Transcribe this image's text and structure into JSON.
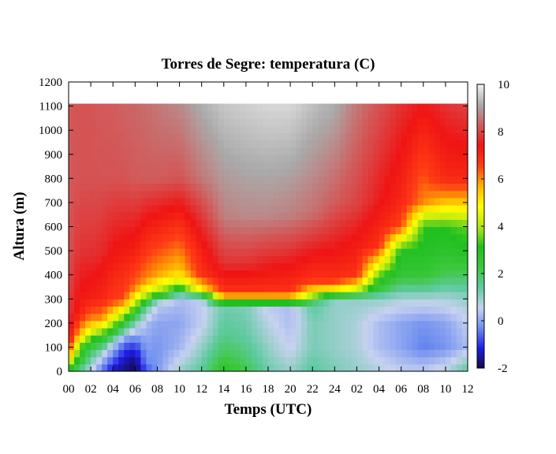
{
  "chart_data": {
    "type": "heatmap",
    "title": "Torres de Segre: temperatura (C)",
    "xlabel": "Temps (UTC)",
    "ylabel": "Altura (m)",
    "x_tick_labels": [
      "00",
      "02",
      "04",
      "06",
      "08",
      "10",
      "12",
      "14",
      "16",
      "18",
      "20",
      "22",
      "24",
      "02",
      "04",
      "06",
      "08",
      "10",
      "12"
    ],
    "x_range_hours": [
      0,
      36
    ],
    "y_ticks": [
      0,
      100,
      200,
      300,
      400,
      500,
      600,
      700,
      800,
      900,
      1000,
      1100,
      1200
    ],
    "ylim": [
      0,
      1200
    ],
    "data_top_altitude": 1110,
    "colorbar": {
      "ticks": [
        -2,
        0,
        2,
        4,
        6,
        8,
        10
      ],
      "range": [
        -2,
        10
      ],
      "palette": [
        "#140a46",
        "#1e1ee6",
        "#6e8ef0",
        "#c8d2f0",
        "#5fcaa0",
        "#3cc83c",
        "#20c020",
        "#b4e614",
        "#ffff00",
        "#ffb400",
        "#ff3c14",
        "#f01414",
        "#d25a5a",
        "#aaaaaa",
        "#f0f0f0"
      ]
    },
    "profiles": [
      {
        "t": 0,
        "z": [
          0,
          40,
          70,
          100,
          130,
          250,
          500,
          800,
          1110
        ],
        "v": [
          2.5,
          4.5,
          6,
          6.8,
          7.4,
          7.9,
          8.2,
          8.3,
          8.3
        ]
      },
      {
        "t": 1,
        "z": [
          0,
          40,
          100,
          130,
          170,
          250,
          500,
          800,
          1110
        ],
        "v": [
          1.5,
          2.5,
          3.5,
          4.8,
          6,
          7.2,
          7.8,
          8.2,
          8.2
        ]
      },
      {
        "t": 2,
        "z": [
          0,
          60,
          110,
          140,
          180,
          220,
          300,
          500,
          800,
          1110
        ],
        "v": [
          0.6,
          1.5,
          2.5,
          3.5,
          5,
          6,
          7.2,
          7.8,
          8.2,
          8.2
        ]
      },
      {
        "t": 3,
        "z": [
          0,
          60,
          110,
          150,
          180,
          220,
          300,
          500,
          800,
          1110
        ],
        "v": [
          -0.5,
          0.5,
          2,
          3,
          4.5,
          6,
          7,
          7.7,
          8.2,
          8.3
        ]
      },
      {
        "t": 4,
        "z": [
          0,
          40,
          100,
          150,
          190,
          230,
          300,
          500,
          800,
          1110
        ],
        "v": [
          -1.4,
          -0.8,
          0.2,
          2.2,
          3.6,
          5,
          6.7,
          7.4,
          8.2,
          8.3
        ]
      },
      {
        "t": 5,
        "z": [
          0,
          60,
          130,
          170,
          200,
          240,
          300,
          500,
          800,
          1110
        ],
        "v": [
          -1.7,
          -1.3,
          -0.3,
          1.5,
          2.5,
          4.2,
          6.5,
          7.3,
          8.2,
          8.4
        ]
      },
      {
        "t": 6,
        "z": [
          0,
          60,
          130,
          200,
          240,
          280,
          350,
          500,
          800,
          1110
        ],
        "v": [
          -2,
          -1.6,
          -0.5,
          1.2,
          2.5,
          4,
          6.2,
          7.2,
          8.3,
          8.4
        ]
      },
      {
        "t": 7,
        "z": [
          0,
          40,
          120,
          200,
          270,
          300,
          380,
          550,
          800,
          1110
        ],
        "v": [
          -0.8,
          -0.3,
          0,
          0.3,
          1.5,
          3.5,
          6,
          7,
          8.3,
          8.5
        ]
      },
      {
        "t": 8,
        "z": [
          0,
          100,
          200,
          280,
          300,
          330,
          400,
          550,
          800,
          1110
        ],
        "v": [
          -0.2,
          -0.2,
          0,
          0.5,
          2,
          4,
          5.8,
          6.8,
          8.3,
          8.6
        ]
      },
      {
        "t": 10,
        "z": [
          0,
          100,
          200,
          300,
          330,
          360,
          420,
          600,
          800,
          1110
        ],
        "v": [
          1,
          0.2,
          0,
          0.3,
          2,
          4,
          5.5,
          6.8,
          8.2,
          8.8
        ]
      },
      {
        "t": 12,
        "z": [
          0,
          100,
          200,
          300,
          320,
          340,
          400,
          500,
          800,
          1110
        ],
        "v": [
          1.5,
          1.0,
          0.5,
          0.5,
          2.5,
          5,
          6.8,
          7.2,
          8.6,
          9.2
        ]
      },
      {
        "t": 14,
        "z": [
          0,
          60,
          150,
          260,
          280,
          300,
          330,
          450,
          650,
          1110
        ],
        "v": [
          2.8,
          2.2,
          1.6,
          1.3,
          2.5,
          5,
          6.8,
          7.8,
          8.7,
          9.5
        ]
      },
      {
        "t": 16,
        "z": [
          0,
          60,
          150,
          260,
          280,
          300,
          330,
          450,
          650,
          1110
        ],
        "v": [
          2.2,
          1.8,
          1.4,
          1.2,
          2.5,
          5,
          6.8,
          7.8,
          8.8,
          9.6
        ]
      },
      {
        "t": 18,
        "z": [
          0,
          100,
          200,
          260,
          280,
          300,
          330,
          450,
          650,
          1110
        ],
        "v": [
          1.3,
          1.0,
          0.7,
          0.5,
          2.5,
          5,
          6.8,
          7.6,
          8.8,
          9.7
        ]
      },
      {
        "t": 20,
        "z": [
          0,
          100,
          200,
          260,
          280,
          300,
          330,
          450,
          650,
          1110
        ],
        "v": [
          1.0,
          0.5,
          0.3,
          0.3,
          2.5,
          5,
          6.8,
          7.5,
          8.7,
          9.7
        ]
      },
      {
        "t": 22,
        "z": [
          0,
          100,
          200,
          280,
          300,
          330,
          380,
          450,
          650,
          1110
        ],
        "v": [
          1.5,
          1.2,
          1.2,
          1.5,
          3,
          5,
          6.8,
          7.2,
          8.5,
          9.4
        ]
      },
      {
        "t": 24,
        "z": [
          0,
          100,
          200,
          300,
          320,
          340,
          380,
          450,
          700,
          1110
        ],
        "v": [
          1.2,
          1.0,
          1.0,
          1.0,
          3,
          5,
          6.8,
          7.2,
          8.3,
          9.2
        ]
      },
      {
        "t": 26,
        "z": [
          0,
          100,
          200,
          300,
          330,
          350,
          400,
          500,
          700,
          1110
        ],
        "v": [
          1.0,
          0.8,
          0.8,
          1.0,
          3,
          5,
          6.8,
          7.2,
          8.0,
          8.6
        ]
      },
      {
        "t": 28,
        "z": [
          0,
          100,
          200,
          300,
          350,
          400,
          450,
          520,
          700,
          1110
        ],
        "v": [
          0.8,
          0.3,
          0.3,
          1.0,
          2.5,
          3.5,
          5,
          6.8,
          7.5,
          8.2
        ]
      },
      {
        "t": 30,
        "z": [
          0,
          100,
          200,
          300,
          400,
          500,
          560,
          600,
          700,
          1110
        ],
        "v": [
          0.5,
          0,
          0,
          0.8,
          2.5,
          3,
          5,
          6.5,
          7,
          7.8
        ]
      },
      {
        "t": 32,
        "z": [
          0,
          100,
          200,
          300,
          400,
          500,
          600,
          650,
          700,
          1110
        ],
        "v": [
          0.5,
          -0.4,
          -0.2,
          0.8,
          2.5,
          3,
          3.2,
          4.5,
          6,
          7.5
        ]
      },
      {
        "t": 34,
        "z": [
          0,
          100,
          200,
          300,
          400,
          500,
          600,
          700,
          800,
          1110
        ],
        "v": [
          0.8,
          -0.2,
          0,
          0.8,
          2,
          2.8,
          3.2,
          5.5,
          7,
          7.8
        ]
      },
      {
        "t": 36,
        "z": [
          0,
          100,
          200,
          300,
          400,
          500,
          600,
          700,
          800,
          1110
        ],
        "v": [
          1.5,
          0.3,
          0.5,
          1.0,
          2,
          3,
          3.5,
          5.5,
          7,
          8.0
        ]
      }
    ]
  }
}
